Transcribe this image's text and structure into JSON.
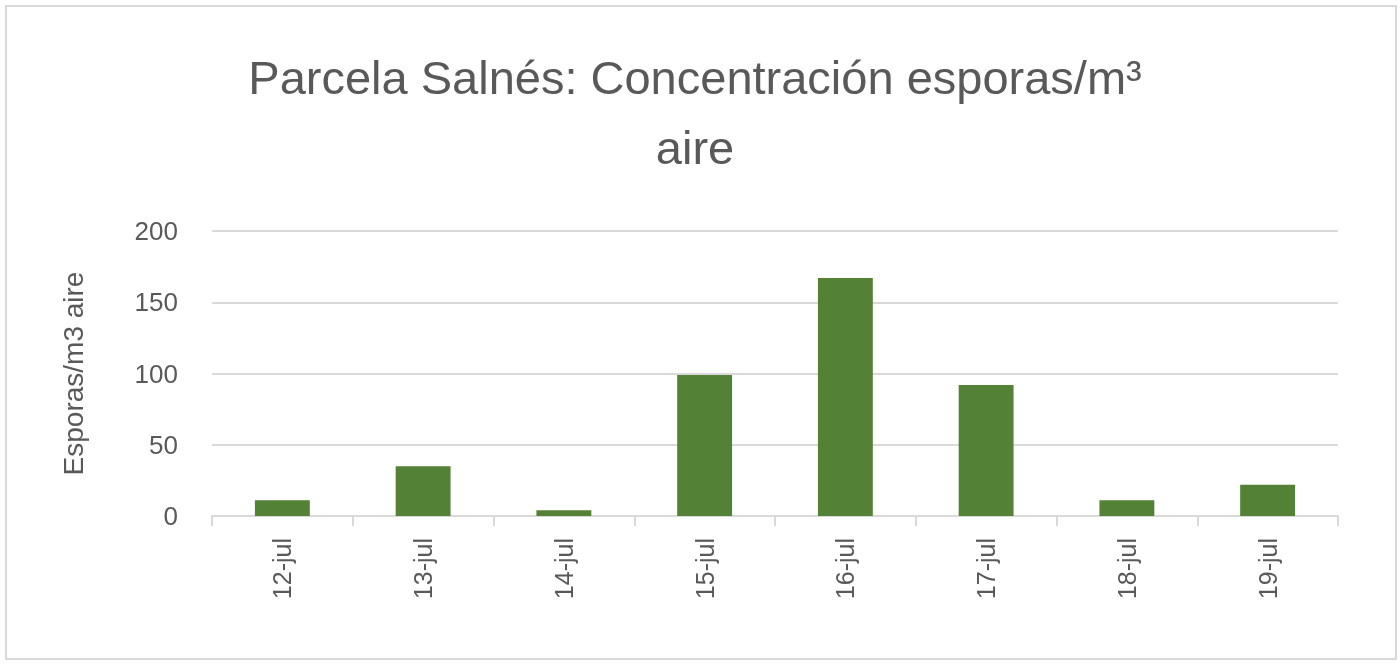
{
  "chart_data": {
    "type": "bar",
    "title": "Parcela Salnés: Concentración esporas/m³ aire",
    "ylabel": "Esporas/m3 aire",
    "categories": [
      "12-jul",
      "13-jul",
      "14-jul",
      "15-jul",
      "16-jul",
      "17-jul",
      "18-jul",
      "19-jul"
    ],
    "values": [
      11,
      35,
      4,
      99,
      167,
      92,
      11,
      22
    ],
    "color": "#538135",
    "ylim": [
      0,
      200
    ],
    "yticks": [
      0,
      50,
      100,
      150,
      200
    ],
    "grid": "y"
  }
}
